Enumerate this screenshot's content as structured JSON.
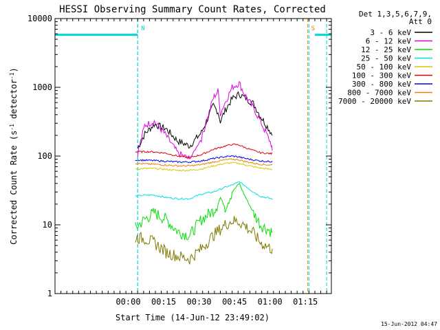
{
  "chart_data": {
    "type": "line",
    "title": "HESSI Observing Summary Count Rates, Corrected",
    "xlabel": "Start Time (14-Jun-12 23:49:02)",
    "ylabel": "Corrected Count Rate (s⁻¹ detector⁻¹)",
    "ylabel_parts": [
      "Corrected Count Rate (s",
      "-1",
      " detector",
      "-1",
      ")"
    ],
    "x_unit": "minutes after 14-Jun-12 23:49:02",
    "xlim": [
      -20,
      97
    ],
    "ylim": [
      1,
      10000
    ],
    "y_scale": "log",
    "y_ticks": [
      1,
      10,
      100,
      1000,
      10000
    ],
    "y_tick_labels": [
      "1",
      "10",
      "100",
      "1000",
      "10000"
    ],
    "x_ticks": [
      11,
      26,
      41,
      56,
      71,
      86
    ],
    "x_tick_labels": [
      "00:00",
      "00:15",
      "00:30",
      "00:45",
      "01:00",
      "01:15"
    ],
    "footer": "15-Jun-2012 04:47",
    "legend": {
      "placement": "right",
      "header": [
        "Det 1,3,5,6,7,9,",
        "Att 0"
      ]
    },
    "markers": [
      {
        "label": "N",
        "x": 15,
        "color": "#00d8d8"
      },
      {
        "label": "S",
        "x": 87,
        "color": "#e08000"
      }
    ],
    "night_level": 5800,
    "night_segments": [
      [
        -20,
        15
      ],
      [
        90,
        97
      ]
    ],
    "night_bounds": [
      -20,
      15,
      87.5,
      95
    ],
    "series": [
      {
        "name": "3 - 6 keV",
        "color": "#000000",
        "x": [
          15,
          18,
          22,
          27,
          32,
          37,
          42,
          47,
          49,
          50,
          52,
          55,
          58,
          60,
          64,
          67,
          71.5,
          72
        ],
        "y": [
          130,
          210,
          290,
          250,
          165,
          140,
          220,
          540,
          440,
          320,
          460,
          680,
          800,
          720,
          580,
          380,
          220,
          200
        ]
      },
      {
        "name": "6 - 12 keV",
        "color": "#e000e0",
        "x": [
          15,
          18,
          22,
          27,
          32,
          37,
          42,
          47,
          49,
          50,
          52,
          55,
          58,
          60,
          64,
          67,
          71.5,
          72
        ],
        "y": [
          110,
          280,
          320,
          200,
          110,
          90,
          180,
          700,
          880,
          420,
          600,
          1000,
          1150,
          820,
          500,
          320,
          150,
          120
        ]
      },
      {
        "name": "12 - 25 keV",
        "color": "#00e000",
        "x": [
          14,
          18,
          22,
          27,
          32,
          37,
          42,
          47,
          49,
          50,
          52,
          55,
          58,
          60,
          64,
          67,
          71.5,
          72
        ],
        "y": [
          9,
          12,
          15,
          12,
          8,
          7,
          12,
          16,
          20,
          25,
          18,
          30,
          40,
          28,
          15,
          10,
          8,
          8
        ]
      },
      {
        "name": "25 - 50 keV",
        "color": "#00e0e0",
        "x": [
          14,
          18,
          22,
          27,
          32,
          37,
          42,
          47,
          49,
          52,
          55,
          58,
          60,
          64,
          67,
          71.5,
          72
        ],
        "y": [
          26,
          27,
          27,
          25,
          24,
          24,
          28,
          30,
          32,
          35,
          38,
          42,
          38,
          30,
          26,
          24,
          24
        ]
      },
      {
        "name": "50 - 100 keV",
        "color": "#d8c800",
        "x": [
          14,
          18,
          22,
          27,
          32,
          37,
          42,
          47,
          52,
          55,
          58,
          60,
          64,
          67,
          71.5,
          72
        ],
        "y": [
          65,
          66,
          66,
          64,
          62,
          62,
          65,
          72,
          78,
          80,
          78,
          75,
          70,
          67,
          64,
          64
        ]
      },
      {
        "name": "100 - 300 keV",
        "color": "#e00000",
        "x": [
          14,
          18,
          22,
          27,
          32,
          37,
          42,
          47,
          52,
          55,
          58,
          60,
          64,
          67,
          71.5,
          72
        ],
        "y": [
          115,
          116,
          115,
          110,
          100,
          95,
          105,
          125,
          140,
          148,
          145,
          135,
          120,
          112,
          108,
          110
        ]
      },
      {
        "name": "300 - 800 keV",
        "color": "#0000e0",
        "x": [
          14,
          18,
          22,
          27,
          32,
          37,
          42,
          47,
          52,
          55,
          58,
          60,
          64,
          67,
          71.5,
          72
        ],
        "y": [
          88,
          87,
          86,
          84,
          82,
          82,
          85,
          92,
          98,
          100,
          97,
          93,
          88,
          85,
          83,
          85
        ]
      },
      {
        "name": "800 - 7000 keV",
        "color": "#f08000",
        "x": [
          14,
          18,
          22,
          27,
          32,
          37,
          42,
          47,
          52,
          55,
          58,
          60,
          64,
          67,
          71.5,
          72
        ],
        "y": [
          78,
          77,
          76,
          74,
          72,
          72,
          75,
          82,
          88,
          90,
          88,
          84,
          79,
          76,
          74,
          75
        ]
      },
      {
        "name": "7000 - 20000 keV",
        "color": "#807800",
        "x": [
          14,
          18,
          22,
          27,
          32,
          37,
          42,
          47,
          52,
          55,
          58,
          60,
          64,
          67,
          71.5,
          72
        ],
        "y": [
          6.5,
          6.3,
          5.5,
          4.0,
          3.5,
          3.2,
          4.5,
          7.0,
          10,
          11.5,
          11,
          10,
          7.5,
          5.5,
          4.5,
          4.5
        ]
      }
    ]
  }
}
